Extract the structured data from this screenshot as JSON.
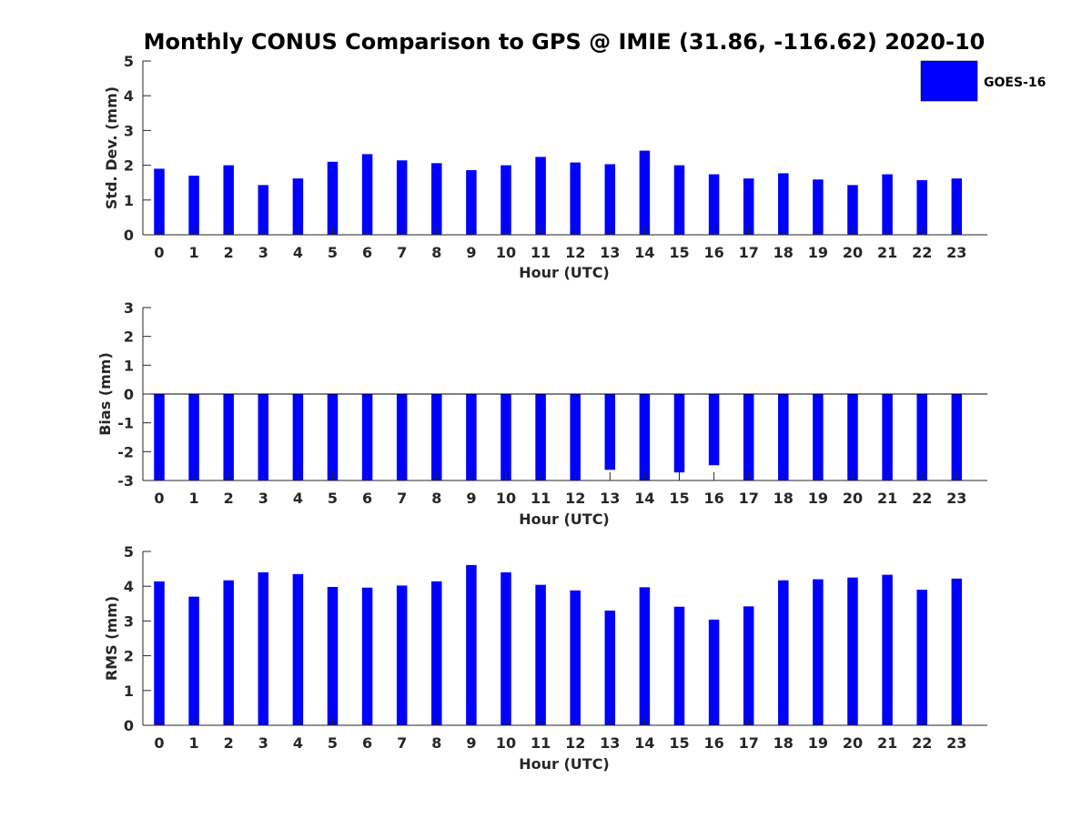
{
  "title": "Monthly CONUS Comparison to GPS @ IMIE (31.86, -116.62) 2020-10",
  "legend": {
    "label": "GOES-16",
    "color": "#0000ff"
  },
  "chart_data": [
    {
      "type": "bar",
      "name": "std-dev",
      "title": "Monthly CONUS Comparison to GPS @ IMIE (31.86, -116.62) 2020-10",
      "xlabel": "Hour (UTC)",
      "ylabel": "Std. Dev. (mm)",
      "ylim": [
        0,
        5
      ],
      "yticks": [
        "0",
        "1",
        "2",
        "3",
        "4",
        "5"
      ],
      "categories": [
        "0",
        "1",
        "2",
        "3",
        "4",
        "5",
        "6",
        "7",
        "8",
        "9",
        "10",
        "11",
        "12",
        "13",
        "14",
        "15",
        "16",
        "17",
        "18",
        "19",
        "20",
        "21",
        "22",
        "23"
      ],
      "series": [
        {
          "name": "GOES-16",
          "values": [
            1.9,
            1.7,
            2.0,
            1.43,
            1.62,
            2.1,
            2.32,
            2.14,
            2.06,
            1.86,
            2.0,
            2.24,
            2.08,
            2.03,
            2.42,
            2.0,
            1.74,
            1.62,
            1.77,
            1.59,
            1.43,
            1.74,
            1.57,
            1.62
          ]
        }
      ]
    },
    {
      "type": "bar",
      "name": "bias",
      "xlabel": "Hour (UTC)",
      "ylabel": "Bias (mm)",
      "ylim": [
        -3,
        3
      ],
      "yticks": [
        "-3",
        "-2",
        "-1",
        "0",
        "1",
        "2",
        "3"
      ],
      "categories": [
        "0",
        "1",
        "2",
        "3",
        "4",
        "5",
        "6",
        "7",
        "8",
        "9",
        "10",
        "11",
        "12",
        "13",
        "14",
        "15",
        "16",
        "17",
        "18",
        "19",
        "20",
        "21",
        "22",
        "23"
      ],
      "series": [
        {
          "name": "GOES-16",
          "values": [
            -3.0,
            -3.0,
            -3.0,
            -3.0,
            -3.0,
            -3.0,
            -3.0,
            -3.0,
            -3.0,
            -3.0,
            -3.0,
            -3.0,
            -3.0,
            -2.63,
            -3.0,
            -2.72,
            -2.47,
            -3.0,
            -3.0,
            -3.0,
            -3.0,
            -3.0,
            -3.0,
            -3.0
          ]
        }
      ]
    },
    {
      "type": "bar",
      "name": "rms",
      "xlabel": "Hour (UTC)",
      "ylabel": "RMS (mm)",
      "ylim": [
        0,
        5
      ],
      "yticks": [
        "0",
        "1",
        "2",
        "3",
        "4",
        "5"
      ],
      "categories": [
        "0",
        "1",
        "2",
        "3",
        "4",
        "5",
        "6",
        "7",
        "8",
        "9",
        "10",
        "11",
        "12",
        "13",
        "14",
        "15",
        "16",
        "17",
        "18",
        "19",
        "20",
        "21",
        "22",
        "23"
      ],
      "series": [
        {
          "name": "GOES-16",
          "values": [
            4.14,
            3.7,
            4.17,
            4.4,
            4.35,
            3.98,
            3.96,
            4.02,
            4.14,
            4.61,
            4.4,
            4.04,
            3.88,
            3.3,
            3.97,
            3.41,
            3.04,
            3.42,
            4.17,
            4.2,
            4.25,
            4.33,
            3.9,
            4.22
          ]
        }
      ]
    }
  ]
}
